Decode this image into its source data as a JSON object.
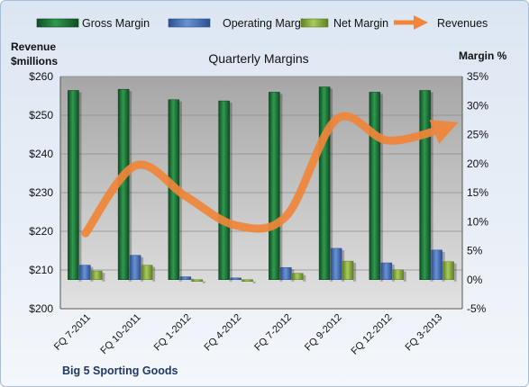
{
  "chart_data": {
    "type": "bar",
    "title": "Quarterly Margins",
    "footer": "Big 5 Sporting Goods",
    "y_left_label_line1": "Revenue",
    "y_left_label_line2": "$millions",
    "y_right_label": "Margin %",
    "categories": [
      "FQ 7-2011",
      "FQ 10-2011",
      "FQ 1-2012",
      "FQ 4-2012",
      "FQ 7-2012",
      "FQ 9-2012",
      "FQ 12-2012",
      "FQ 3-2013"
    ],
    "left_axis": {
      "ylim": [
        200,
        260
      ],
      "ticks": [
        200,
        210,
        220,
        230,
        240,
        250,
        260
      ],
      "tick_labels": [
        "$200",
        "$210",
        "$220",
        "$230",
        "$240",
        "$250",
        "$260"
      ]
    },
    "right_axis": {
      "ylim": [
        -5,
        35
      ],
      "ticks": [
        -5,
        0,
        5,
        10,
        15,
        20,
        25,
        30,
        35
      ],
      "tick_labels": [
        "-5%",
        "0%",
        "5%",
        "10%",
        "15%",
        "20%",
        "25%",
        "30%",
        "35%"
      ]
    },
    "series": [
      {
        "name": "Gross Margin",
        "axis": "right",
        "kind": "bar",
        "color": "#1f7a3a",
        "values": [
          32.6,
          32.8,
          31.0,
          30.8,
          32.3,
          33.2,
          32.3,
          32.6
        ]
      },
      {
        "name": "Operating Margin",
        "axis": "right",
        "kind": "bar",
        "color": "#4a74b8",
        "values": [
          2.5,
          4.2,
          0.5,
          0.3,
          2.1,
          5.4,
          2.9,
          5.1
        ]
      },
      {
        "name": "Net Margin",
        "axis": "right",
        "kind": "bar",
        "color": "#8db143",
        "values": [
          1.5,
          2.5,
          -0.3,
          -0.3,
          1.1,
          3.2,
          1.7,
          3.1
        ]
      },
      {
        "name": "Revenues",
        "axis": "left",
        "kind": "line",
        "color": "#f0863a",
        "values": [
          219.5,
          237,
          229,
          221.5,
          224,
          249,
          243.5,
          246
        ]
      }
    ],
    "legend_position": "top",
    "grid": true
  }
}
